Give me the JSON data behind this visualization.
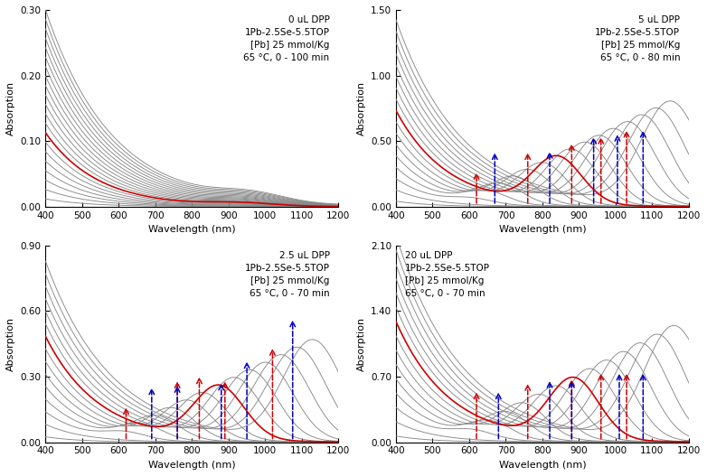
{
  "panels": [
    {
      "label": "0 uL DPP\n1Pb-2.5Se-5.5TOP\n[Pb] 25 mmol/Kg\n65 °C, 0 - 100 min",
      "label_pos": "upper_right",
      "ylim": [
        0,
        0.3
      ],
      "yticks": [
        0.0,
        0.1,
        0.2,
        0.3
      ],
      "n_curves": 21,
      "red_curve_idx": 7,
      "has_arrows": false,
      "red_arrows_x": [],
      "blue_arrows_x": [],
      "red_arrows_ytip": [],
      "blue_arrows_ytip": []
    },
    {
      "label": "5 uL DPP\n1Pb-2.5Se-5.5TOP\n[Pb] 25 mmol/Kg\n65 °C, 0 - 80 min",
      "label_pos": "upper_right",
      "ylim": [
        0,
        1.5
      ],
      "yticks": [
        0.0,
        0.5,
        1.0,
        1.5
      ],
      "n_curves": 17,
      "red_curve_idx": 8,
      "has_arrows": true,
      "red_arrows_x": [
        620,
        760,
        880,
        960,
        1030
      ],
      "blue_arrows_x": [
        670,
        820,
        940,
        1005,
        1075
      ],
      "red_arrows_ytip": [
        0.28,
        0.43,
        0.5,
        0.55,
        0.6
      ],
      "blue_arrows_ytip": [
        0.43,
        0.44,
        0.55,
        0.57,
        0.6
      ]
    },
    {
      "label": "2.5 uL DPP\n1Pb-2.5Se-5.5TOP\n[Pb] 25 mmol/Kg\n65 °C, 0 - 70 min",
      "label_pos": "upper_right",
      "ylim": [
        0,
        0.9
      ],
      "yticks": [
        0.0,
        0.3,
        0.6,
        0.9
      ],
      "n_curves": 15,
      "red_curve_idx": 8,
      "has_arrows": true,
      "red_arrows_x": [
        620,
        760,
        820,
        890,
        1020
      ],
      "blue_arrows_x": [
        690,
        760,
        880,
        950,
        1075
      ],
      "red_arrows_ytip": [
        0.17,
        0.29,
        0.31,
        0.29,
        0.44
      ],
      "blue_arrows_ytip": [
        0.26,
        0.27,
        0.28,
        0.38,
        0.57
      ]
    },
    {
      "label": "20 uL DPP\n1Pb-2.5Se-5.5TOP\n[Pb] 25 mmol/Kg\n65 °C, 0 - 70 min",
      "label_pos": "upper_left",
      "ylim": [
        0,
        2.1
      ],
      "yticks": [
        0.0,
        0.7,
        1.4,
        2.1
      ],
      "n_curves": 15,
      "red_curve_idx": 8,
      "has_arrows": true,
      "red_arrows_x": [
        620,
        760,
        880,
        960,
        1030
      ],
      "blue_arrows_x": [
        680,
        820,
        880,
        1010,
        1075
      ],
      "red_arrows_ytip": [
        0.56,
        0.65,
        0.7,
        0.76,
        0.76
      ],
      "blue_arrows_ytip": [
        0.56,
        0.68,
        0.68,
        0.76,
        0.76
      ]
    }
  ],
  "xlim": [
    400,
    1200
  ],
  "xticks": [
    400,
    500,
    600,
    700,
    800,
    900,
    1000,
    1100,
    1200
  ],
  "xlabel": "Wavelength (nm)",
  "ylabel": "Absorption",
  "curve_color": "#888888",
  "red_color": "#cc0000",
  "blue_color": "#0000bb"
}
